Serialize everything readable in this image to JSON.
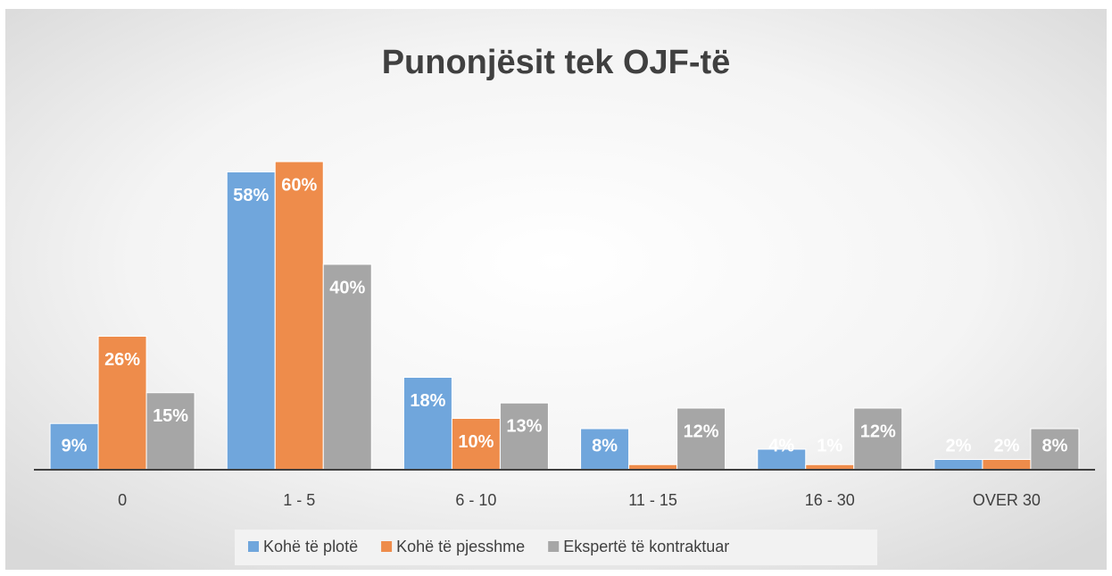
{
  "chart_data": {
    "type": "bar",
    "title": "Punonjësit tek OJF-të",
    "categories": [
      "0",
      "1 - 5",
      "6 - 10",
      "11 - 15",
      "16 - 30",
      "OVER 30"
    ],
    "series": [
      {
        "name": "Kohë të plotë",
        "color": "#70a6dc",
        "values": [
          9,
          58,
          18,
          8,
          4,
          2
        ],
        "value_labels": [
          "9%",
          "58%",
          "18%",
          "8%",
          "4%",
          "2%"
        ]
      },
      {
        "name": "Kohë të pjesshme",
        "color": "#ee8c4b",
        "values": [
          26,
          60,
          10,
          1,
          1,
          2
        ],
        "value_labels": [
          "26%",
          "60%",
          "10%",
          null,
          "1%",
          "2%"
        ]
      },
      {
        "name": "Ekspertë të kontraktuar",
        "color": "#a6a6a6",
        "values": [
          15,
          40,
          13,
          12,
          12,
          8
        ],
        "value_labels": [
          "15%",
          "40%",
          "13%",
          "12%",
          "12%",
          "8%"
        ]
      }
    ],
    "legend": "bottom"
  }
}
